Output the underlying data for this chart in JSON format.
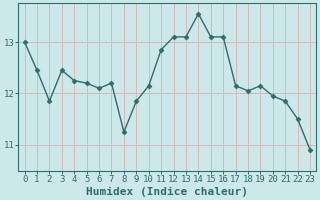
{
  "x": [
    0,
    1,
    2,
    3,
    4,
    5,
    6,
    7,
    8,
    9,
    10,
    11,
    12,
    13,
    14,
    15,
    16,
    17,
    18,
    19,
    20,
    21,
    22,
    23
  ],
  "y": [
    13.0,
    12.45,
    11.85,
    12.45,
    12.25,
    12.2,
    12.1,
    12.2,
    11.25,
    11.85,
    12.15,
    12.85,
    13.1,
    13.1,
    13.55,
    13.1,
    13.1,
    12.15,
    12.05,
    12.15,
    11.95,
    11.85,
    11.5,
    10.9
  ],
  "line_color": "#2d6e6e",
  "marker": "D",
  "marker_size": 2.5,
  "bg_color": "#cce8e8",
  "xlabel": "Humidex (Indice chaleur)",
  "xlabel_fontsize": 8,
  "ylim": [
    10.5,
    13.75
  ],
  "xlim": [
    -0.5,
    23.5
  ],
  "yticks": [
    11,
    12,
    13
  ],
  "xticks": [
    0,
    1,
    2,
    3,
    4,
    5,
    6,
    7,
    8,
    9,
    10,
    11,
    12,
    13,
    14,
    15,
    16,
    17,
    18,
    19,
    20,
    21,
    22,
    23
  ],
  "tick_fontsize": 6.5,
  "grid_color": "#d8b8b8"
}
